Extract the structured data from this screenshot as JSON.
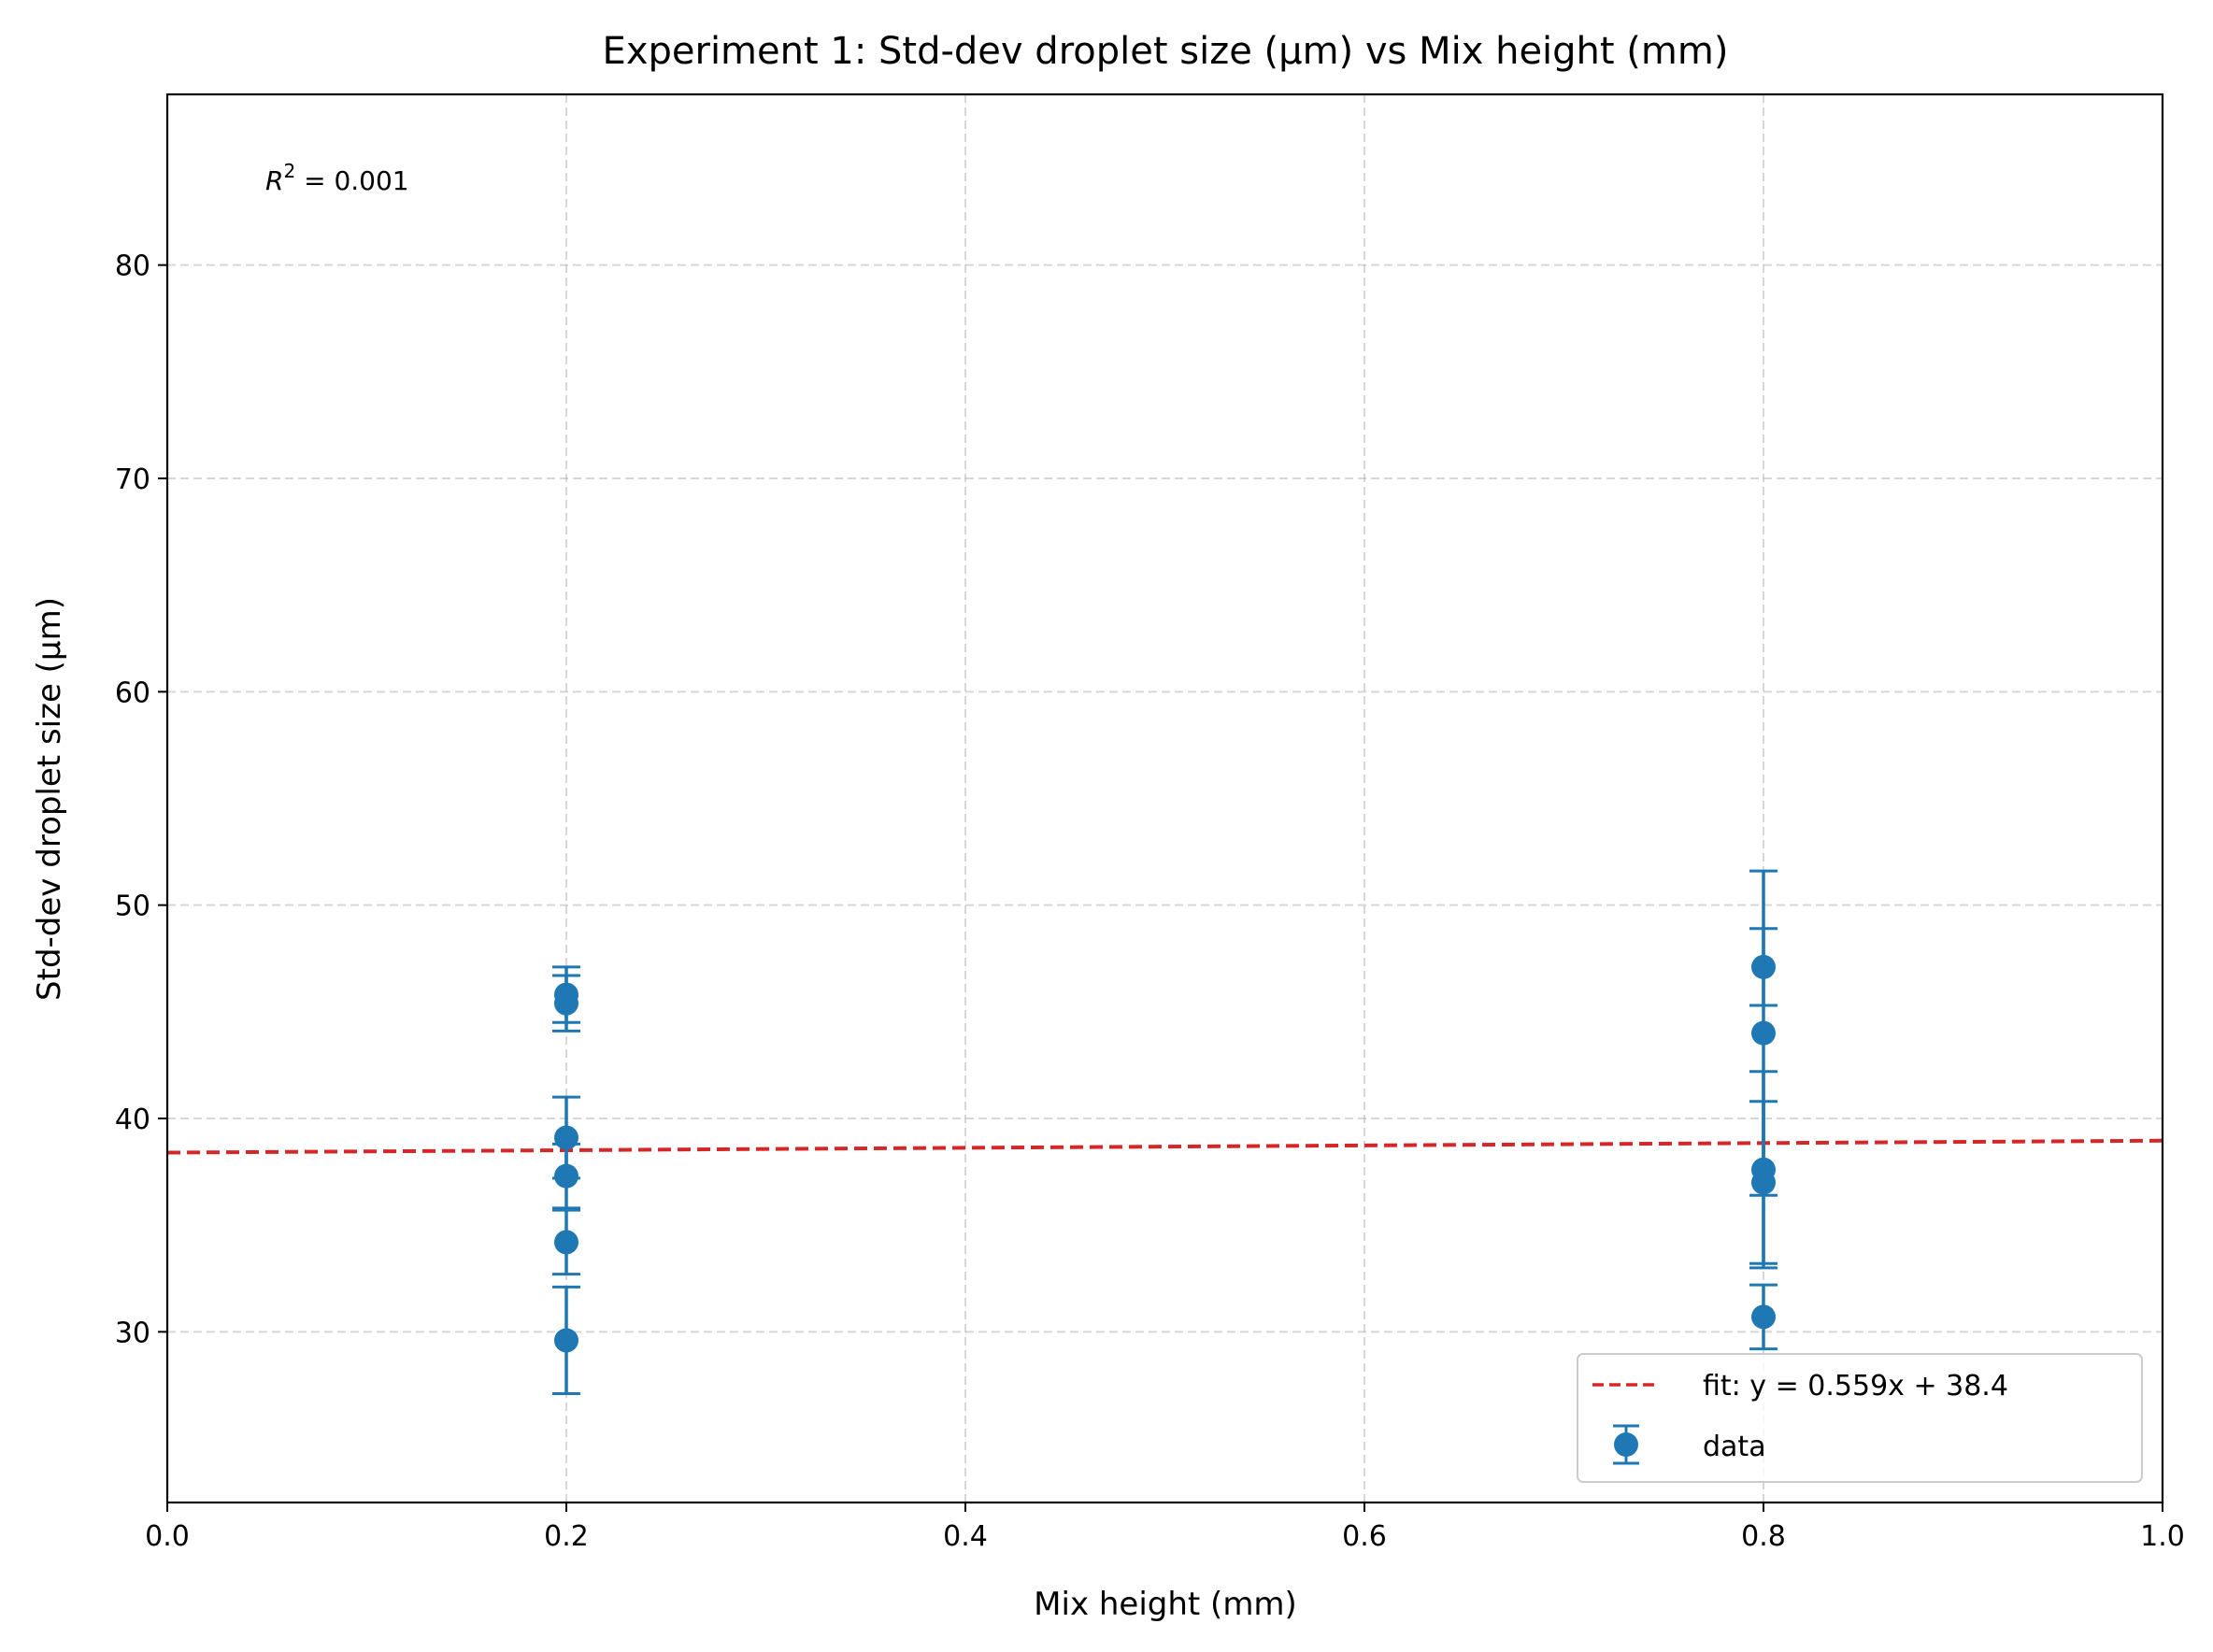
{
  "chart_data": {
    "type": "scatter",
    "title": "Experiment 1: Std-dev droplet size (µm) vs Mix height (mm)",
    "xlabel": "Mix height (mm)",
    "ylabel": "Std-dev droplet size (µm)",
    "xlim": [
      0.0,
      1.0
    ],
    "ylim": [
      22,
      88
    ],
    "xticks": [
      0.0,
      0.2,
      0.4,
      0.6,
      0.8,
      1.0
    ],
    "xtick_labels": [
      "0.0",
      "0.2",
      "0.4",
      "0.6",
      "0.8",
      "1.0"
    ],
    "yticks": [
      30,
      40,
      50,
      60,
      70,
      80
    ],
    "ytick_labels": [
      "30",
      "40",
      "50",
      "60",
      "70",
      "80"
    ],
    "grid": true,
    "legend_position": "bottom-right",
    "annotation": {
      "r2_label": "R",
      "r2_sup": "2",
      "r2_value": " = 0.001"
    },
    "series": [
      {
        "name": "data",
        "kind": "errorbar",
        "color": "#1f77b4",
        "points": [
          {
            "x": 0.2,
            "y": 45.8,
            "err": 1.3
          },
          {
            "x": 0.2,
            "y": 45.4,
            "err": 1.3
          },
          {
            "x": 0.2,
            "y": 39.1,
            "err": 1.9
          },
          {
            "x": 0.2,
            "y": 37.3,
            "err": 1.5
          },
          {
            "x": 0.2,
            "y": 34.2,
            "err": 1.5
          },
          {
            "x": 0.2,
            "y": 29.6,
            "err": 2.5
          },
          {
            "x": 0.8,
            "y": 47.1,
            "err": 1.8
          },
          {
            "x": 0.8,
            "y": 44.0,
            "err": 7.6
          },
          {
            "x": 0.8,
            "y": 37.6,
            "err": 4.6
          },
          {
            "x": 0.8,
            "y": 37.0,
            "err": 3.8
          },
          {
            "x": 0.8,
            "y": 30.7,
            "err": 1.5
          }
        ]
      },
      {
        "name": "fit: y = 0.559x + 38.4",
        "kind": "line",
        "color": "#d62728",
        "dash": "dashed",
        "slope": 0.559,
        "intercept": 38.4
      }
    ]
  }
}
